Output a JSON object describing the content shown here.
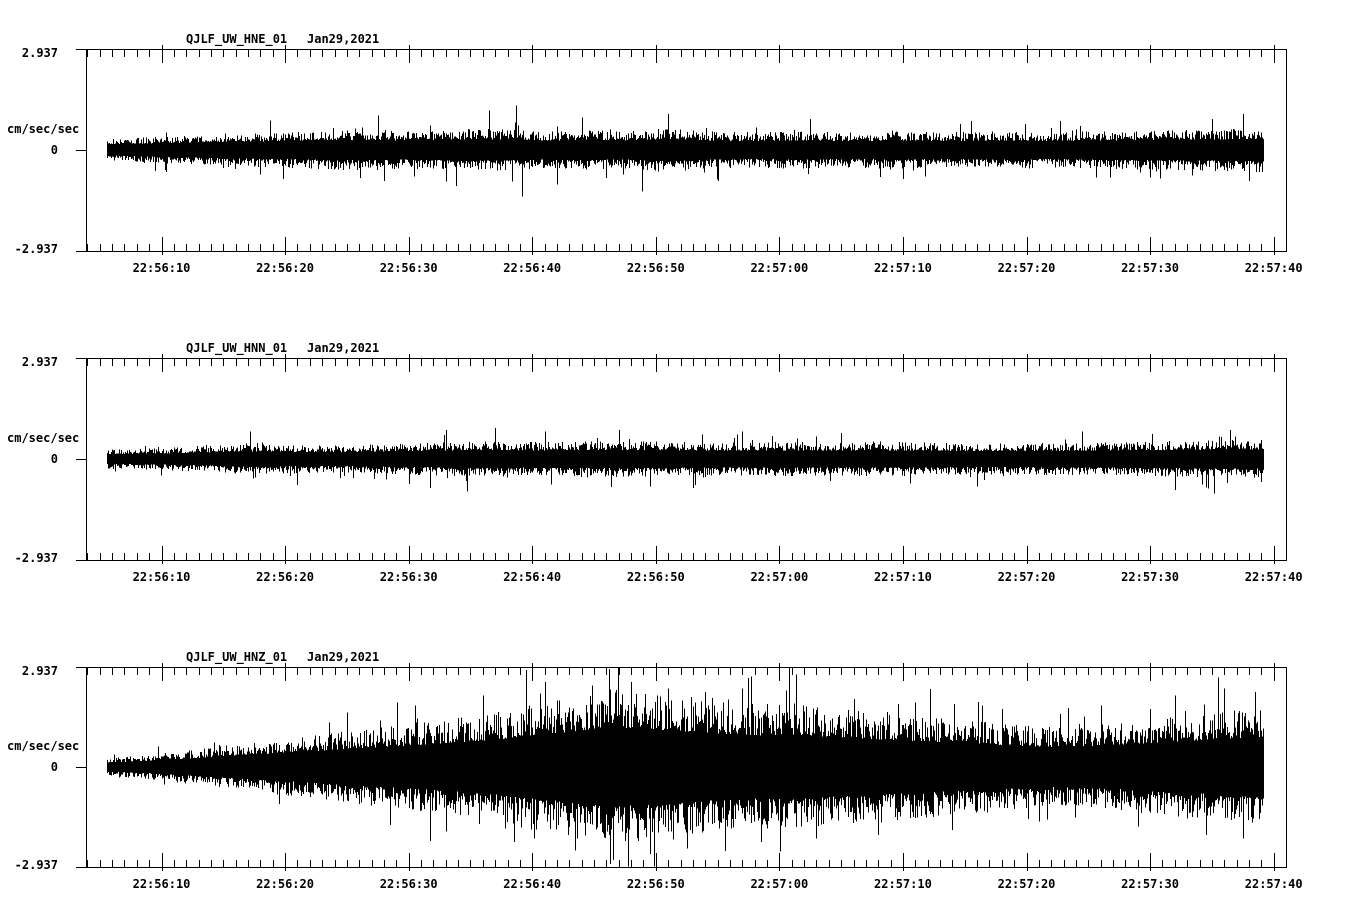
{
  "page": {
    "background": "#ffffff",
    "ink": "#000000"
  },
  "time_axis": {
    "tick_labels": [
      "22:56:10",
      "22:56:20",
      "22:56:30",
      "22:56:40",
      "22:56:50",
      "22:57:00",
      "22:57:10",
      "22:57:20",
      "22:57:30",
      "22:57:40"
    ],
    "major_interval_s": 10,
    "minor_interval_s": 1,
    "axis_start_s": 3.89,
    "axis_end_s": 101.0,
    "seconds_reference": "22:56:00"
  },
  "chart_data": [
    {
      "type": "line",
      "title": "QJLF_UW_HNE_01",
      "date": "Jan29,2021",
      "units_label": "cm/sec/sec",
      "y_top_label": "2.937",
      "y_zero_label": "0",
      "y_bottom_label": "-2.937",
      "ylim": [
        -2.937,
        2.937
      ],
      "x_tick_labels": [
        "22:56:10",
        "22:56:20",
        "22:56:30",
        "22:56:40",
        "22:56:50",
        "22:57:00",
        "22:57:10",
        "22:57:20",
        "22:57:30",
        "22:57:40"
      ],
      "signal": {
        "t0_s": 5.6,
        "t1_s": 99.1,
        "envelope": [
          [
            5.6,
            0.32
          ],
          [
            10,
            0.4
          ],
          [
            14,
            0.45
          ],
          [
            18,
            0.5
          ],
          [
            22,
            0.55
          ],
          [
            26,
            0.6
          ],
          [
            29,
            0.55
          ],
          [
            32,
            0.58
          ],
          [
            35,
            0.62
          ],
          [
            38,
            0.6
          ],
          [
            41,
            0.55
          ],
          [
            44,
            0.58
          ],
          [
            48,
            0.55
          ],
          [
            51,
            0.65
          ],
          [
            54,
            0.55
          ],
          [
            58,
            0.52
          ],
          [
            62,
            0.55
          ],
          [
            66,
            0.52
          ],
          [
            70,
            0.55
          ],
          [
            74,
            0.52
          ],
          [
            78,
            0.55
          ],
          [
            82,
            0.52
          ],
          [
            86,
            0.55
          ],
          [
            90,
            0.58
          ],
          [
            94,
            0.6
          ],
          [
            99.1,
            0.65
          ]
        ],
        "spikes": [
          [
            19.8,
            -0.85
          ],
          [
            27.5,
            1.0
          ],
          [
            28,
            -0.9
          ],
          [
            33.8,
            -1.05
          ],
          [
            36.5,
            1.15
          ],
          [
            38.7,
            1.3
          ],
          [
            39.2,
            -1.35
          ],
          [
            42,
            -1.0
          ],
          [
            44,
            0.95
          ],
          [
            48.9,
            -1.2
          ],
          [
            51,
            1.05
          ],
          [
            55,
            -0.9
          ],
          [
            62.5,
            0.9
          ],
          [
            70,
            -0.85
          ],
          [
            75.5,
            0.85
          ],
          [
            90,
            -0.8
          ],
          [
            95,
            0.9
          ],
          [
            97.5,
            1.05
          ],
          [
            98,
            -0.9
          ]
        ]
      }
    },
    {
      "type": "line",
      "title": "QJLF_UW_HNN_01",
      "date": "Jan29,2021",
      "units_label": "cm/sec/sec",
      "y_top_label": "2.937",
      "y_zero_label": "0",
      "y_bottom_label": "-2.937",
      "ylim": [
        -2.937,
        2.937
      ],
      "x_tick_labels": [
        "22:56:10",
        "22:56:20",
        "22:56:30",
        "22:56:40",
        "22:56:50",
        "22:57:00",
        "22:57:10",
        "22:57:20",
        "22:57:30",
        "22:57:40"
      ],
      "signal": {
        "t0_s": 5.6,
        "t1_s": 99.1,
        "envelope": [
          [
            5.6,
            0.28
          ],
          [
            10,
            0.32
          ],
          [
            14,
            0.38
          ],
          [
            17,
            0.45
          ],
          [
            20,
            0.42
          ],
          [
            24,
            0.4
          ],
          [
            28,
            0.44
          ],
          [
            32,
            0.48
          ],
          [
            36,
            0.52
          ],
          [
            40,
            0.5
          ],
          [
            44,
            0.52
          ],
          [
            48,
            0.52
          ],
          [
            52,
            0.5
          ],
          [
            56,
            0.48
          ],
          [
            60,
            0.5
          ],
          [
            64,
            0.48
          ],
          [
            68,
            0.5
          ],
          [
            72,
            0.48
          ],
          [
            76,
            0.46
          ],
          [
            80,
            0.46
          ],
          [
            84,
            0.48
          ],
          [
            88,
            0.5
          ],
          [
            92,
            0.52
          ],
          [
            96,
            0.55
          ],
          [
            99.1,
            0.55
          ]
        ],
        "spikes": [
          [
            17.2,
            0.8
          ],
          [
            21,
            -0.75
          ],
          [
            31.7,
            -0.85
          ],
          [
            33,
            0.85
          ],
          [
            34.7,
            -0.95
          ],
          [
            37,
            0.9
          ],
          [
            41,
            0.8
          ],
          [
            47,
            0.85
          ],
          [
            49.5,
            -0.8
          ],
          [
            53,
            -0.85
          ],
          [
            57,
            0.8
          ],
          [
            65,
            0.75
          ],
          [
            76,
            -0.8
          ],
          [
            84.5,
            0.8
          ],
          [
            92,
            -0.9
          ],
          [
            95.2,
            -1.0
          ],
          [
            96.5,
            0.85
          ]
        ]
      }
    },
    {
      "type": "line",
      "title": "QJLF_UW_HNZ_01",
      "date": "Jan29,2021",
      "units_label": "cm/sec/sec",
      "y_top_label": "2.937",
      "y_zero_label": "0",
      "y_bottom_label": "-2.937",
      "ylim": [
        -2.937,
        2.937
      ],
      "x_tick_labels": [
        "22:56:10",
        "22:56:20",
        "22:56:30",
        "22:56:40",
        "22:56:50",
        "22:57:00",
        "22:57:10",
        "22:57:20",
        "22:57:30",
        "22:57:40"
      ],
      "signal": {
        "t0_s": 5.6,
        "t1_s": 99.1,
        "envelope": [
          [
            5.6,
            0.25
          ],
          [
            10,
            0.4
          ],
          [
            14,
            0.58
          ],
          [
            18,
            0.75
          ],
          [
            22,
            0.92
          ],
          [
            26,
            1.1
          ],
          [
            30,
            1.25
          ],
          [
            34,
            1.45
          ],
          [
            37,
            1.6
          ],
          [
            40,
            1.85
          ],
          [
            43,
            2.05
          ],
          [
            46,
            2.3
          ],
          [
            49,
            2.25
          ],
          [
            52,
            2.1
          ],
          [
            55,
            1.95
          ],
          [
            58,
            1.85
          ],
          [
            61,
            1.9
          ],
          [
            64,
            1.75
          ],
          [
            67,
            1.65
          ],
          [
            70,
            1.55
          ],
          [
            73,
            1.45
          ],
          [
            76,
            1.35
          ],
          [
            79,
            1.25
          ],
          [
            82,
            1.18
          ],
          [
            85,
            1.22
          ],
          [
            88,
            1.32
          ],
          [
            91,
            1.45
          ],
          [
            94,
            1.55
          ],
          [
            97,
            1.7
          ],
          [
            99.1,
            1.78
          ]
        ],
        "spikes": [
          [
            25,
            1.6
          ],
          [
            28.5,
            -1.7
          ],
          [
            30.5,
            1.8
          ],
          [
            33,
            -1.9
          ],
          [
            36,
            2.1
          ],
          [
            38.5,
            -2.2
          ],
          [
            41,
            2.5
          ],
          [
            43.5,
            -2.45
          ],
          [
            44.8,
            2.4
          ],
          [
            46.2,
            2.88
          ],
          [
            46.3,
            -2.85
          ],
          [
            48,
            2.5
          ],
          [
            49.5,
            -2.55
          ],
          [
            51,
            2.3
          ],
          [
            52.5,
            -2.4
          ],
          [
            54,
            2.2
          ],
          [
            57,
            2.3
          ],
          [
            58.5,
            -2.2
          ],
          [
            60.5,
            2.25
          ],
          [
            63,
            -2.1
          ],
          [
            66,
            2.0
          ],
          [
            68,
            -2.0
          ],
          [
            71,
            1.9
          ],
          [
            74,
            -1.85
          ],
          [
            78,
            1.7
          ],
          [
            81,
            -1.6
          ],
          [
            86,
            1.8
          ],
          [
            89,
            -1.75
          ],
          [
            92,
            2.1
          ],
          [
            94.5,
            -2.0
          ],
          [
            96,
            2.3
          ],
          [
            97.5,
            -2.1
          ],
          [
            98.5,
            2.2
          ]
        ]
      }
    }
  ]
}
